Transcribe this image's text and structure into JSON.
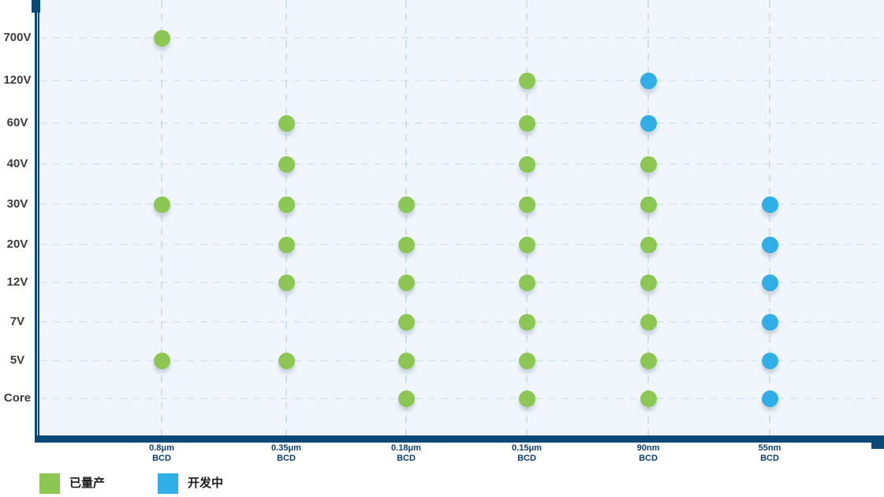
{
  "chart_data": {
    "type": "scatter",
    "title": "",
    "xlabel": "",
    "ylabel": "",
    "grid": true,
    "legend_position": "bottom-left",
    "x_categories": [
      {
        "node": "0.8μm",
        "family": "BCD"
      },
      {
        "node": "0.35μm",
        "family": "BCD"
      },
      {
        "node": "0.18μm",
        "family": "BCD"
      },
      {
        "node": "0.15μm",
        "family": "BCD"
      },
      {
        "node": "90nm",
        "family": "BCD"
      },
      {
        "node": "55nm",
        "family": "BCD"
      }
    ],
    "y_categories": [
      "700V",
      "120V",
      "60V",
      "40V",
      "30V",
      "20V",
      "12V",
      "7V",
      "5V",
      "Core"
    ],
    "series": [
      {
        "name": "已量产",
        "status": "in-mass-production",
        "color": "#8CC653",
        "points": [
          {
            "x": "0.8μm BCD",
            "y": "700V"
          },
          {
            "x": "0.8μm BCD",
            "y": "30V"
          },
          {
            "x": "0.8μm BCD",
            "y": "5V"
          },
          {
            "x": "0.35μm BCD",
            "y": "60V"
          },
          {
            "x": "0.35μm BCD",
            "y": "40V"
          },
          {
            "x": "0.35μm BCD",
            "y": "30V"
          },
          {
            "x": "0.35μm BCD",
            "y": "20V"
          },
          {
            "x": "0.35μm BCD",
            "y": "12V"
          },
          {
            "x": "0.35μm BCD",
            "y": "5V"
          },
          {
            "x": "0.18μm BCD",
            "y": "30V"
          },
          {
            "x": "0.18μm BCD",
            "y": "20V"
          },
          {
            "x": "0.18μm BCD",
            "y": "12V"
          },
          {
            "x": "0.18μm BCD",
            "y": "7V"
          },
          {
            "x": "0.18μm BCD",
            "y": "5V"
          },
          {
            "x": "0.18μm BCD",
            "y": "Core"
          },
          {
            "x": "0.15μm BCD",
            "y": "120V"
          },
          {
            "x": "0.15μm BCD",
            "y": "60V"
          },
          {
            "x": "0.15μm BCD",
            "y": "40V"
          },
          {
            "x": "0.15μm BCD",
            "y": "30V"
          },
          {
            "x": "0.15μm BCD",
            "y": "20V"
          },
          {
            "x": "0.15μm BCD",
            "y": "12V"
          },
          {
            "x": "0.15μm BCD",
            "y": "7V"
          },
          {
            "x": "0.15μm BCD",
            "y": "5V"
          },
          {
            "x": "0.15μm BCD",
            "y": "Core"
          },
          {
            "x": "90nm BCD",
            "y": "40V"
          },
          {
            "x": "90nm BCD",
            "y": "30V"
          },
          {
            "x": "90nm BCD",
            "y": "20V"
          },
          {
            "x": "90nm BCD",
            "y": "12V"
          },
          {
            "x": "90nm BCD",
            "y": "7V"
          },
          {
            "x": "90nm BCD",
            "y": "5V"
          },
          {
            "x": "90nm BCD",
            "y": "Core"
          }
        ]
      },
      {
        "name": "开发中",
        "status": "in-development",
        "color": "#2FAEE8",
        "points": [
          {
            "x": "90nm BCD",
            "y": "120V"
          },
          {
            "x": "90nm BCD",
            "y": "60V"
          },
          {
            "x": "55nm BCD",
            "y": "30V"
          },
          {
            "x": "55nm BCD",
            "y": "20V"
          },
          {
            "x": "55nm BCD",
            "y": "12V"
          },
          {
            "x": "55nm BCD",
            "y": "7V"
          },
          {
            "x": "55nm BCD",
            "y": "5V"
          },
          {
            "x": "55nm BCD",
            "y": "Core"
          }
        ]
      }
    ]
  },
  "colors": {
    "axis": "#0A4878",
    "plot_background": "#F0F6FB",
    "grid_horizontal": "#DCE8F4",
    "grid_vertical": "#CEDFEE",
    "y_label_text": "#3C3C3C",
    "x_label_text": "#0C3E6E",
    "production_green": "#8CC653",
    "development_blue": "#2FAEE8"
  }
}
